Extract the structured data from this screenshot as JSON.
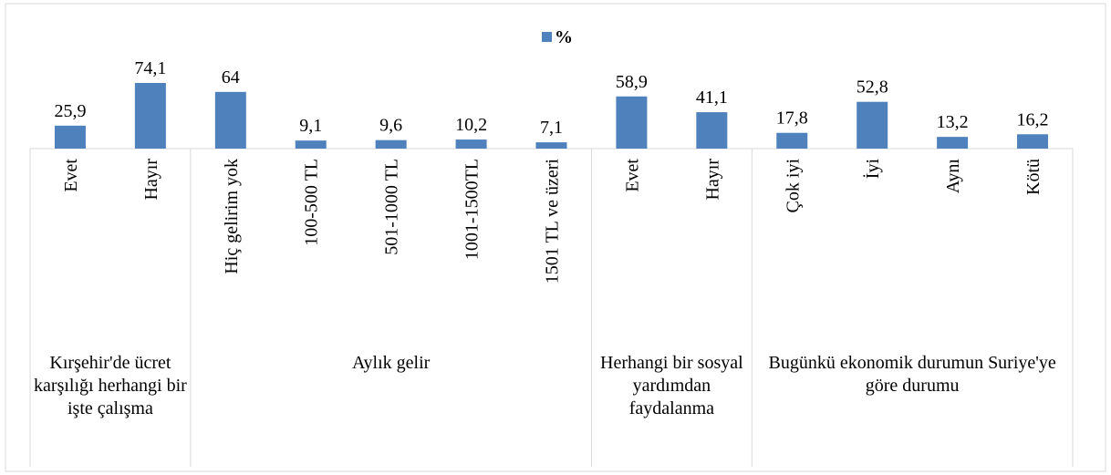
{
  "chart_data": {
    "type": "bar",
    "series": [
      {
        "name": "%",
        "color": "#4f81bd",
        "values": [
          25.9,
          74.1,
          64,
          9.1,
          9.6,
          10.2,
          7.1,
          58.9,
          41.1,
          17.8,
          52.8,
          13.2,
          16.2
        ],
        "value_labels": [
          "25,9",
          "74,1",
          "64",
          "9,1",
          "9,6",
          "10,2",
          "7,1",
          "58,9",
          "41,1",
          "17,8",
          "52,8",
          "13,2",
          "16,2"
        ]
      }
    ],
    "groups": [
      {
        "name": "Kırşehir'de ücret karşılığı herhangi bir işte çalışma",
        "categories": [
          "Evet",
          "Hayır"
        ]
      },
      {
        "name": "Aylık gelir",
        "categories": [
          "Hiç gelirim yok",
          "100-500 TL",
          "501-1000 TL",
          "1001-1500TL",
          "1501 TL ve üzeri"
        ]
      },
      {
        "name": "Herhangi bir sosyal yardımdan faydalanma",
        "categories": [
          "Evet",
          "Hayır"
        ]
      },
      {
        "name": "Bugünkü ekonomik durumun Suriye'ye göre durumu",
        "categories": [
          "Çok iyi",
          "İyi",
          "Aynı",
          "Kötü"
        ]
      }
    ],
    "legend": "top"
  }
}
